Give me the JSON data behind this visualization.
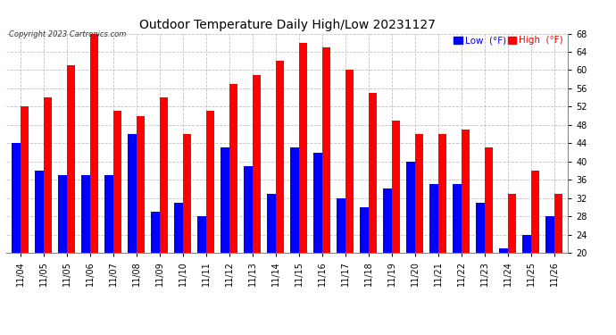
{
  "title": "Outdoor Temperature Daily High/Low 20231127",
  "copyright": "Copyright 2023 Cartronics.com",
  "dates": [
    "11/04",
    "11/05",
    "11/05",
    "11/06",
    "11/07",
    "11/08",
    "11/09",
    "11/10",
    "11/11",
    "11/12",
    "11/13",
    "11/14",
    "11/15",
    "11/16",
    "11/17",
    "11/18",
    "11/19",
    "11/20",
    "11/21",
    "11/22",
    "11/23",
    "11/24",
    "11/25",
    "11/26"
  ],
  "high_values": [
    52.0,
    54.0,
    61.0,
    68.0,
    51.0,
    50.0,
    54.0,
    46.0,
    51.0,
    57.0,
    59.0,
    62.0,
    66.0,
    65.0,
    60.0,
    55.0,
    49.0,
    46.0,
    46.0,
    47.0,
    43.0,
    33.0,
    38.0,
    33.0
  ],
  "low_values": [
    44.0,
    38.0,
    37.0,
    37.0,
    37.0,
    46.0,
    29.0,
    31.0,
    28.0,
    43.0,
    39.0,
    33.0,
    43.0,
    42.0,
    32.0,
    30.0,
    34.0,
    40.0,
    35.0,
    35.0,
    31.0,
    21.0,
    24.0,
    28.0
  ],
  "y_min": 20.0,
  "y_max": 68.0,
  "y_ticks": [
    20.0,
    24.0,
    28.0,
    32.0,
    36.0,
    40.0,
    44.0,
    48.0,
    52.0,
    56.0,
    60.0,
    64.0,
    68.0
  ],
  "high_color": "#ff0000",
  "low_color": "#0000ff",
  "grid_color": "#c0c0c0",
  "bg_color": "#ffffff",
  "title_fontsize": 10,
  "tick_fontsize": 7,
  "legend_fontsize": 7.5,
  "legend_label_low": "Low  (°F)",
  "legend_label_high": "High  (°F)",
  "bar_bottom": 20.0
}
